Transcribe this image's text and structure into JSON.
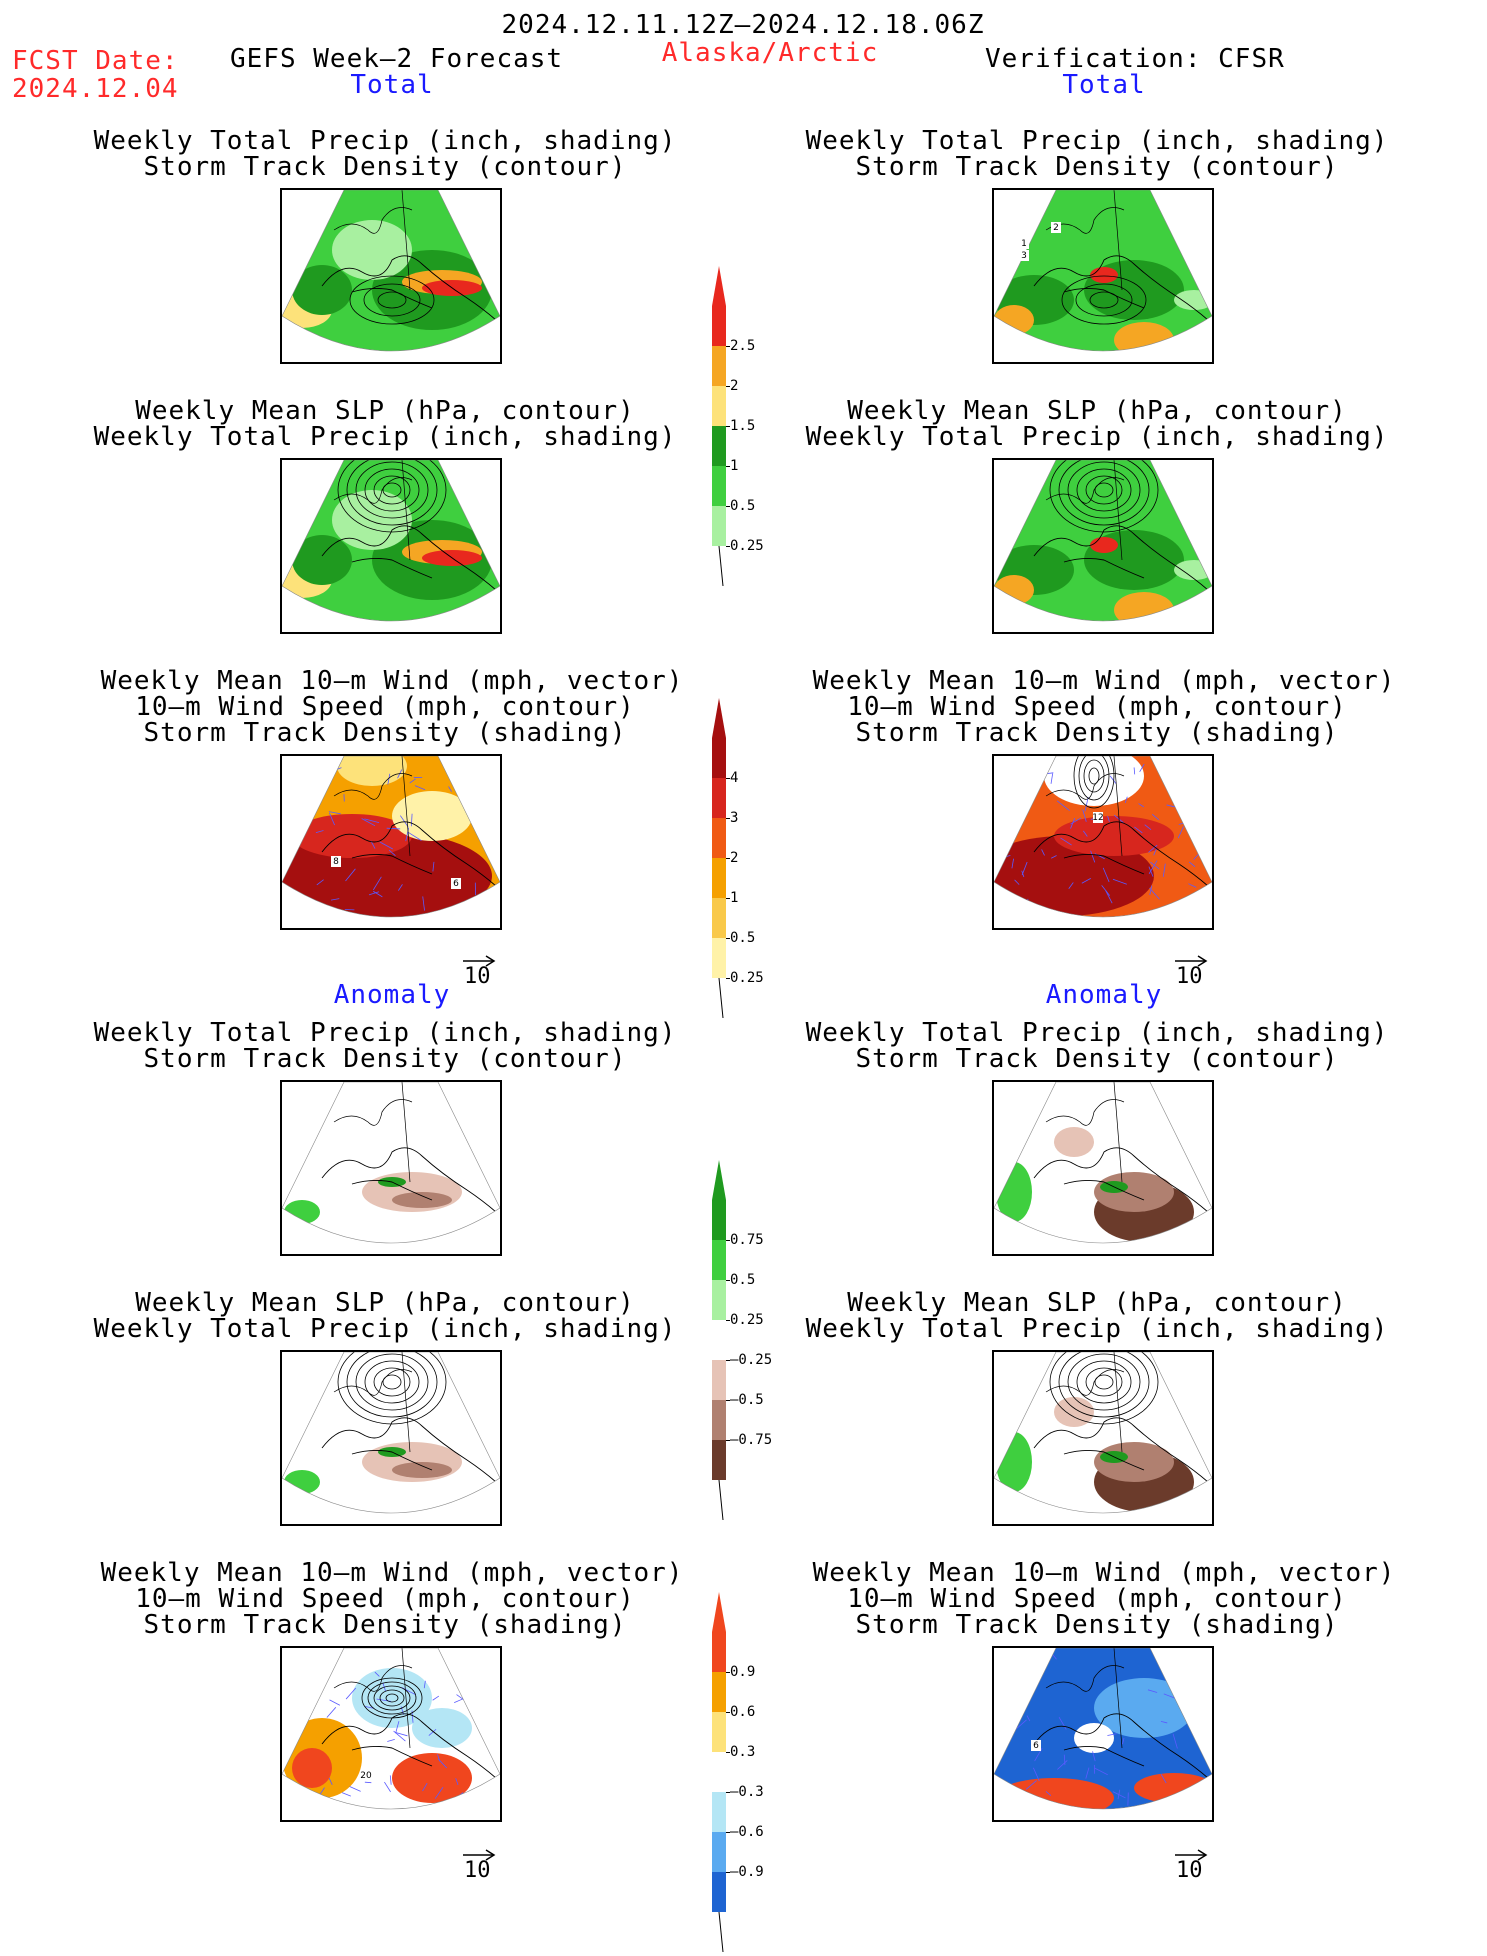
{
  "header": {
    "date_range": "2024.12.11.12Z–2024.12.18.06Z",
    "fcst_label": "FCST Date:",
    "fcst_date": "2024.12.04",
    "model_title": "GEFS Week–2 Forecast",
    "region": "Alaska/Arctic",
    "verification": "Verification: CFSR"
  },
  "sections": {
    "total": "Total",
    "anomaly": "Anomaly"
  },
  "panel_titles": {
    "precip_storm": [
      "Weekly Total Precip (inch, shading)",
      "Storm Track Density (contour)"
    ],
    "slp_precip": [
      "Weekly Mean SLP (hPa, contour)",
      "Weekly Total Precip (inch, shading)"
    ],
    "wind_storm": [
      "Weekly Mean 10–m Wind (mph, vector)",
      "10–m Wind Speed (mph, contour)",
      "Storm Track Density (shading)"
    ]
  },
  "vector_ref_label": "10",
  "colorbars": {
    "precip_total": {
      "labels": [
        "2.5",
        "2",
        "1.5",
        "1",
        "0.5",
        "0.25"
      ],
      "colors": [
        "#e8281e",
        "#f5a623",
        "#fde27a",
        "#1f9a1f",
        "#3fcf3f",
        "#a8f0a0"
      ]
    },
    "storm_total": {
      "labels": [
        "4",
        "3",
        "2",
        "1",
        "0.5",
        "0.25"
      ],
      "colors": [
        "#a50f0f",
        "#d7261e",
        "#f05a14",
        "#f5a000",
        "#f9c94a",
        "#fff2a8"
      ]
    },
    "precip_anom": {
      "labels": [
        "0.75",
        "0.5",
        "0.25",
        "–0.25",
        "–0.5",
        "–0.75"
      ],
      "colors": [
        "#1f9a1f",
        "#3fcf3f",
        "#a8f0a0",
        "#ffffff",
        "#e6c3b6",
        "#b08070",
        "#6b3b2b"
      ]
    },
    "storm_anom": {
      "labels": [
        "0.9",
        "0.6",
        "0.3",
        "–0.3",
        "–0.6",
        "–0.9"
      ],
      "colors": [
        "#f0461e",
        "#f5a000",
        "#fde27a",
        "#ffffff",
        "#b4e6f5",
        "#5aaaf0",
        "#1e64d2"
      ]
    }
  },
  "map_labels": {
    "obs_precip_storm": [
      "1",
      "2",
      "3"
    ],
    "fcst_wind": [
      "8",
      "6"
    ],
    "obs_wind": [
      "12"
    ],
    "fcst_wind_anom": [
      "20"
    ],
    "obs_wind_anom": [
      "6"
    ]
  }
}
